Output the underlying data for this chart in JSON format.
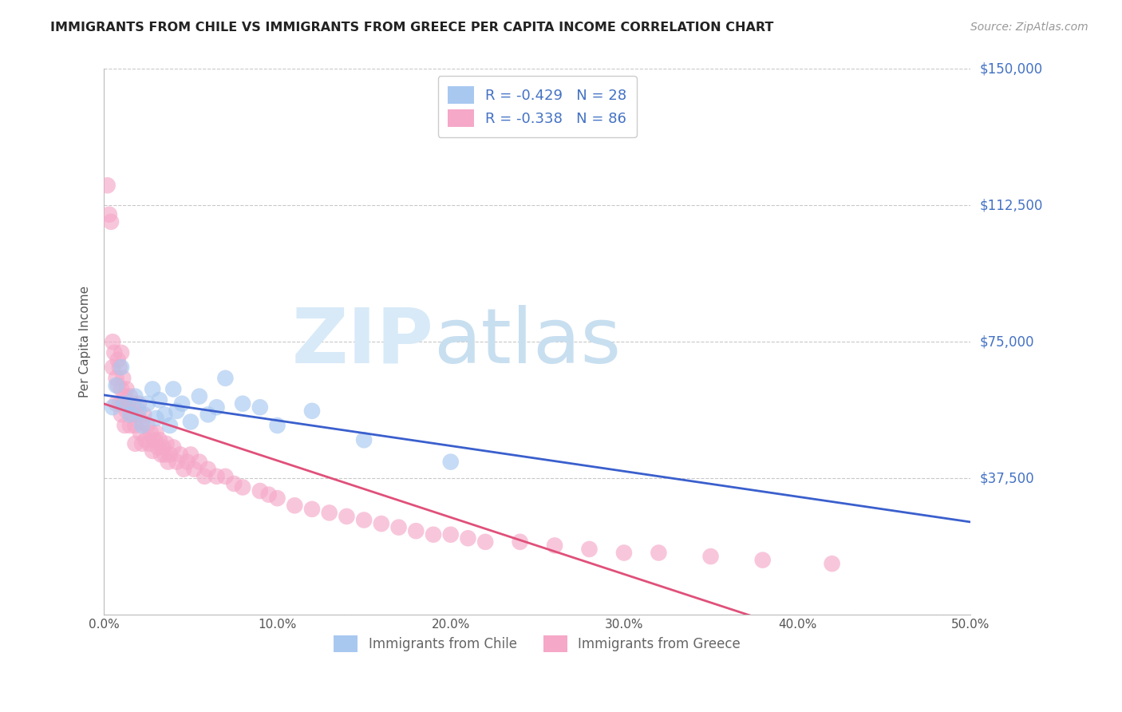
{
  "title": "IMMIGRANTS FROM CHILE VS IMMIGRANTS FROM GREECE PER CAPITA INCOME CORRELATION CHART",
  "source": "Source: ZipAtlas.com",
  "ylabel": "Per Capita Income",
  "xlim": [
    0.0,
    0.5
  ],
  "ylim": [
    0,
    150000
  ],
  "yticks": [
    0,
    37500,
    75000,
    112500,
    150000
  ],
  "ytick_labels": [
    "",
    "$37,500",
    "$75,000",
    "$112,500",
    "$150,000"
  ],
  "xtick_labels": [
    "0.0%",
    "10.0%",
    "20.0%",
    "30.0%",
    "40.0%",
    "50.0%"
  ],
  "xticks": [
    0.0,
    0.1,
    0.2,
    0.3,
    0.4,
    0.5
  ],
  "legend_label1": "R = -0.429   N = 28",
  "legend_label2": "R = -0.338   N = 86",
  "legend_bottom_label1": "Immigrants from Chile",
  "legend_bottom_label2": "Immigrants from Greece",
  "color_chile": "#a8c8f0",
  "color_greece": "#f5a8c8",
  "line_color_chile": "#3a5fcd",
  "line_color_greece": "#e0507a",
  "legend_text_color": "#4472c4",
  "ytick_color": "#4472c4",
  "background_color": "#ffffff",
  "chile_scatter_x": [
    0.005,
    0.007,
    0.01,
    0.012,
    0.015,
    0.018,
    0.02,
    0.022,
    0.025,
    0.028,
    0.03,
    0.032,
    0.035,
    0.038,
    0.04,
    0.042,
    0.045,
    0.05,
    0.055,
    0.06,
    0.065,
    0.07,
    0.08,
    0.09,
    0.1,
    0.12,
    0.15,
    0.2
  ],
  "chile_scatter_y": [
    57000,
    63000,
    68000,
    58000,
    55000,
    60000,
    56000,
    52000,
    58000,
    62000,
    54000,
    59000,
    55000,
    52000,
    62000,
    56000,
    58000,
    53000,
    60000,
    55000,
    57000,
    65000,
    58000,
    57000,
    52000,
    56000,
    48000,
    42000
  ],
  "greece_scatter_x": [
    0.002,
    0.003,
    0.004,
    0.005,
    0.005,
    0.006,
    0.007,
    0.007,
    0.008,
    0.008,
    0.009,
    0.009,
    0.01,
    0.01,
    0.01,
    0.011,
    0.011,
    0.012,
    0.012,
    0.013,
    0.013,
    0.014,
    0.015,
    0.015,
    0.016,
    0.017,
    0.018,
    0.018,
    0.019,
    0.02,
    0.021,
    0.022,
    0.022,
    0.023,
    0.024,
    0.025,
    0.026,
    0.027,
    0.028,
    0.029,
    0.03,
    0.031,
    0.032,
    0.033,
    0.034,
    0.035,
    0.036,
    0.037,
    0.038,
    0.04,
    0.042,
    0.044,
    0.046,
    0.048,
    0.05,
    0.052,
    0.055,
    0.058,
    0.06,
    0.065,
    0.07,
    0.075,
    0.08,
    0.09,
    0.095,
    0.1,
    0.11,
    0.12,
    0.13,
    0.14,
    0.15,
    0.16,
    0.17,
    0.18,
    0.19,
    0.2,
    0.21,
    0.22,
    0.24,
    0.26,
    0.28,
    0.3,
    0.32,
    0.35,
    0.38,
    0.42
  ],
  "greece_scatter_y": [
    118000,
    110000,
    108000,
    75000,
    68000,
    72000,
    65000,
    58000,
    70000,
    63000,
    68000,
    58000,
    72000,
    62000,
    55000,
    65000,
    58000,
    60000,
    52000,
    62000,
    56000,
    58000,
    60000,
    52000,
    55000,
    58000,
    52000,
    47000,
    55000,
    58000,
    50000,
    53000,
    47000,
    55000,
    48000,
    52000,
    47000,
    50000,
    45000,
    48000,
    50000,
    46000,
    48000,
    44000,
    46000,
    44000,
    47000,
    42000,
    44000,
    46000,
    42000,
    44000,
    40000,
    42000,
    44000,
    40000,
    42000,
    38000,
    40000,
    38000,
    38000,
    36000,
    35000,
    34000,
    33000,
    32000,
    30000,
    29000,
    28000,
    27000,
    26000,
    25000,
    24000,
    23000,
    22000,
    22000,
    21000,
    20000,
    20000,
    19000,
    18000,
    17000,
    17000,
    16000,
    15000,
    14000
  ]
}
